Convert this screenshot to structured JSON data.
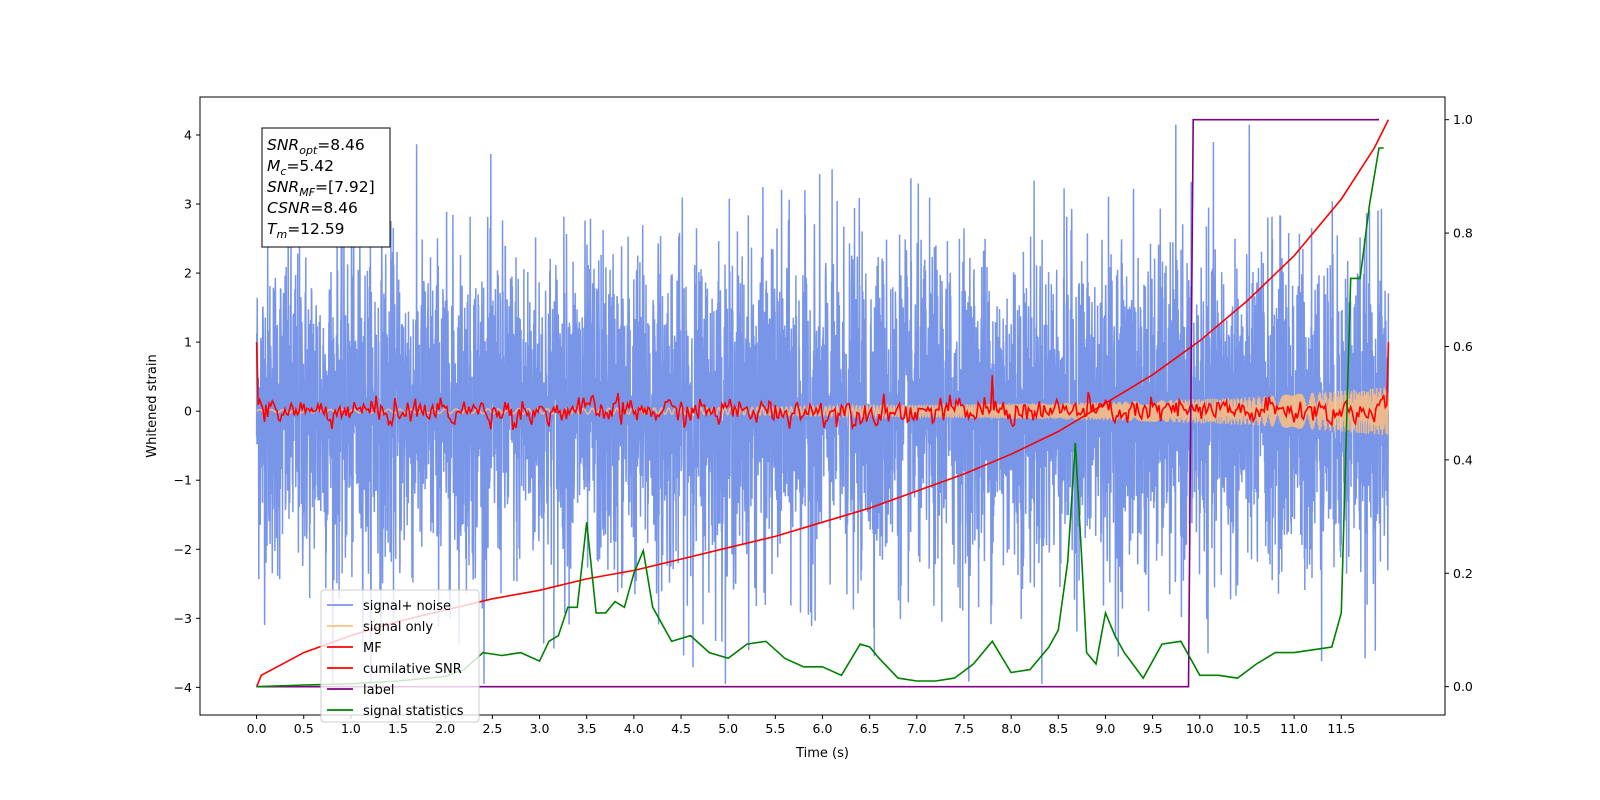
{
  "chart_data": {
    "type": "line",
    "xlabel": "Time (s)",
    "ylabel": "Whitened strain",
    "xlim": [
      -0.6,
      12.6
    ],
    "ylim": [
      -4.4,
      4.55
    ],
    "y2lim": [
      -0.05,
      1.04
    ],
    "xticks": [
      "0.0",
      "0.5",
      "1.0",
      "1.5",
      "2.0",
      "2.5",
      "3.0",
      "3.5",
      "4.0",
      "4.5",
      "5.0",
      "5.5",
      "6.0",
      "6.5",
      "7.0",
      "7.5",
      "8.0",
      "8.5",
      "9.0",
      "9.5",
      "10.0",
      "10.5",
      "11.0",
      "11.5"
    ],
    "yticks": [
      "4",
      "3",
      "2",
      "1",
      "0",
      "−1",
      "−2",
      "−3",
      "−4"
    ],
    "y2ticks": [
      "1.0",
      "0.8",
      "0.6",
      "0.4",
      "0.2",
      "0.0"
    ],
    "legend_position": "lower left",
    "grid": false,
    "info_box": {
      "lines": [
        {
          "sym": "SNR",
          "sub": "opt",
          "rest": "=8.46"
        },
        {
          "sym": "M",
          "sub": "c",
          "rest": "=5.42"
        },
        {
          "sym": "SNR",
          "sub": "MF",
          "rest": "=[7.92]"
        },
        {
          "sym": "CSNR",
          "sub": "",
          "rest": "=8.46"
        },
        {
          "sym": "T",
          "sub": "m",
          "rest": "=12.59"
        }
      ]
    },
    "series": [
      {
        "name": "signal+ noise",
        "color": "#7895e8",
        "axis": "left",
        "note_std": 1.0,
        "noise_range": [
          -3.9,
          4.2
        ]
      },
      {
        "name": "signal only",
        "color": "#ffc080",
        "axis": "left",
        "envelope": {
          "x": [
            0,
            5.0,
            9.0,
            10.5,
            12.0
          ],
          "amp": [
            0.02,
            0.05,
            0.13,
            0.2,
            0.35
          ]
        }
      },
      {
        "name": "MF",
        "color": "#ff0000",
        "axis": "left",
        "start": 1.0,
        "end": 1.0,
        "spikes": [
          {
            "x": 7.8,
            "y": 0.52
          }
        ]
      },
      {
        "name": "cumilative SNR",
        "color": "#ff0000",
        "axis": "right",
        "x": [
          0,
          0.05,
          0.5,
          1.0,
          1.5,
          2.0,
          2.5,
          3.0,
          3.5,
          4.0,
          4.5,
          5.0,
          5.5,
          6.0,
          6.5,
          7.0,
          7.5,
          8.0,
          8.5,
          9.0,
          9.5,
          10.0,
          10.5,
          11.0,
          11.5,
          11.85,
          12.0
        ],
        "y": [
          0.0,
          0.02,
          0.06,
          0.09,
          0.115,
          0.135,
          0.155,
          0.17,
          0.19,
          0.205,
          0.225,
          0.245,
          0.265,
          0.29,
          0.315,
          0.345,
          0.375,
          0.41,
          0.45,
          0.5,
          0.55,
          0.61,
          0.68,
          0.76,
          0.86,
          0.95,
          1.0
        ]
      },
      {
        "name": "label",
        "color": "#800080",
        "axis": "right",
        "x": [
          0.0,
          9.88,
          9.93,
          11.9
        ],
        "y": [
          0.0,
          0.0,
          1.0,
          1.0
        ]
      },
      {
        "name": "signal statistics",
        "color": "#008000",
        "axis": "right",
        "x": [
          0.0,
          0.5,
          1.0,
          1.5,
          2.0,
          2.2,
          2.4,
          2.6,
          2.8,
          3.0,
          3.1,
          3.2,
          3.3,
          3.4,
          3.5,
          3.6,
          3.7,
          3.8,
          3.9,
          4.0,
          4.1,
          4.2,
          4.3,
          4.4,
          4.5,
          4.6,
          4.8,
          5.0,
          5.2,
          5.4,
          5.6,
          5.8,
          6.0,
          6.2,
          6.4,
          6.5,
          6.6,
          6.8,
          7.0,
          7.2,
          7.4,
          7.6,
          7.8,
          8.0,
          8.2,
          8.4,
          8.5,
          8.6,
          8.68,
          8.75,
          8.8,
          8.9,
          9.0,
          9.1,
          9.2,
          9.4,
          9.6,
          9.8,
          10.0,
          10.2,
          10.4,
          10.6,
          10.8,
          11.0,
          11.2,
          11.4,
          11.5,
          11.6,
          11.7,
          11.8,
          11.9,
          11.95
        ],
        "y": [
          0.0,
          0.003,
          0.005,
          0.01,
          0.018,
          0.03,
          0.06,
          0.055,
          0.06,
          0.045,
          0.08,
          0.09,
          0.14,
          0.14,
          0.29,
          0.13,
          0.13,
          0.15,
          0.14,
          0.2,
          0.24,
          0.14,
          0.11,
          0.08,
          0.085,
          0.09,
          0.06,
          0.05,
          0.075,
          0.08,
          0.05,
          0.035,
          0.035,
          0.02,
          0.075,
          0.07,
          0.05,
          0.015,
          0.01,
          0.01,
          0.015,
          0.04,
          0.08,
          0.025,
          0.03,
          0.07,
          0.1,
          0.22,
          0.43,
          0.22,
          0.06,
          0.04,
          0.13,
          0.09,
          0.06,
          0.015,
          0.075,
          0.08,
          0.02,
          0.02,
          0.015,
          0.04,
          0.06,
          0.06,
          0.065,
          0.07,
          0.13,
          0.72,
          0.72,
          0.85,
          0.95,
          0.95
        ]
      }
    ]
  }
}
